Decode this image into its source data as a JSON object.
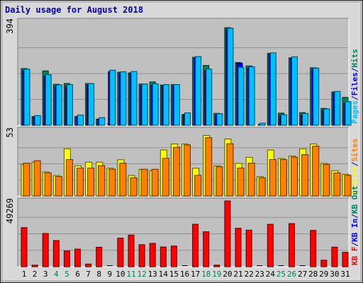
{
  "title": "Daily usage for August 2018",
  "chart_data": [
    {
      "type": "bar",
      "categories": [
        "1",
        "2",
        "3",
        "4",
        "5",
        "6",
        "7",
        "8",
        "9",
        "10",
        "11",
        "12",
        "13",
        "14",
        "15",
        "16",
        "17",
        "18",
        "19",
        "20",
        "21",
        "22",
        "23",
        "24",
        "25",
        "26",
        "27",
        "28",
        "29",
        "30",
        "31"
      ],
      "weekend_days": [
        "4",
        "5",
        "11",
        "12",
        "18",
        "19",
        "25",
        "26"
      ],
      "ymax_label": "394",
      "ylim": [
        0,
        394
      ],
      "legend": [
        {
          "text": "Pages",
          "color": "#00c0ff"
        },
        {
          "text": "/",
          "color": "#0000a0"
        },
        {
          "text": "Files",
          "color": "#0000ff"
        },
        {
          "text": "/",
          "color": "#0000a0"
        },
        {
          "text": "Hits",
          "color": "#00805c"
        }
      ],
      "series": [
        {
          "name": "Hits",
          "color": "#00805c",
          "values": [
            227,
            44,
            218,
            167,
            170,
            44,
            170,
            34,
            0,
            213,
            210,
            168,
            176,
            164,
            166,
            51,
            270,
            239,
            56,
            383,
            250,
            237,
            10,
            285,
            57,
            268,
            59,
            230,
            75,
            138,
            117
          ]
        },
        {
          "name": "Files",
          "color": "#0000ff",
          "values": [
            214,
            37,
            193,
            154,
            155,
            39,
            159,
            29,
            210,
            204,
            205,
            157,
            158,
            155,
            155,
            47,
            262,
            214,
            44,
            370,
            242,
            223,
            8,
            276,
            40,
            261,
            45,
            218,
            62,
            129,
            90
          ]
        },
        {
          "name": "Pages",
          "color": "#00c0ff",
          "values": [
            214,
            37,
            193,
            154,
            155,
            39,
            159,
            29,
            210,
            204,
            205,
            157,
            158,
            155,
            155,
            47,
            262,
            214,
            44,
            370,
            221,
            223,
            8,
            276,
            40,
            261,
            45,
            218,
            62,
            129,
            90
          ]
        }
      ]
    },
    {
      "type": "bar",
      "categories": [
        "1",
        "2",
        "3",
        "4",
        "5",
        "6",
        "7",
        "8",
        "9",
        "10",
        "11",
        "12",
        "13",
        "14",
        "15",
        "16",
        "17",
        "18",
        "19",
        "20",
        "21",
        "22",
        "23",
        "24",
        "25",
        "26",
        "27",
        "28",
        "29",
        "30",
        "31"
      ],
      "ymax_label": "53",
      "ylim": [
        0,
        53
      ],
      "legend": [
        {
          "text": "Visits",
          "color": "#ffff00"
        },
        {
          "text": "/",
          "color": "#0000a0"
        },
        {
          "text": "Sites",
          "color": "#ff8000"
        }
      ],
      "series": [
        {
          "name": "Visits",
          "color": "#ffff00",
          "values": [
            27,
            29,
            21,
            18,
            40,
            26,
            29,
            29,
            24,
            31,
            18,
            23,
            22,
            39,
            44,
            44,
            24,
            51,
            26,
            48,
            28,
            33,
            17,
            39,
            32,
            34,
            40,
            44,
            28,
            22,
            19
          ]
        },
        {
          "name": "Sites",
          "color": "#ff8000",
          "values": [
            27,
            29,
            19,
            16,
            30,
            23,
            23,
            25,
            22,
            27,
            15,
            22,
            22,
            31,
            40,
            42,
            17,
            48,
            24,
            43,
            23,
            27,
            15,
            30,
            30,
            32,
            34,
            41,
            26,
            19,
            17
          ]
        }
      ]
    },
    {
      "type": "bar",
      "categories": [
        "1",
        "2",
        "3",
        "4",
        "5",
        "6",
        "7",
        "8",
        "9",
        "10",
        "11",
        "12",
        "13",
        "14",
        "15",
        "16",
        "17",
        "18",
        "19",
        "20",
        "21",
        "22",
        "23",
        "24",
        "25",
        "26",
        "27",
        "28",
        "29",
        "30",
        "31"
      ],
      "ymax_label": "49269",
      "ylim": [
        0,
        49269
      ],
      "legend": [
        {
          "text": "KB F",
          "color": "#ff0000"
        },
        {
          "text": "/",
          "color": "#0000a0"
        },
        {
          "text": "KB In",
          "color": "#0000ff"
        },
        {
          "text": "/",
          "color": "#0000a0"
        },
        {
          "text": "KB Out",
          "color": "#00805c"
        }
      ],
      "series": [
        {
          "name": "KB F",
          "color": "#ff0000",
          "values": [
            29300,
            1200,
            24900,
            19600,
            11800,
            13200,
            2000,
            14600,
            0,
            21400,
            23700,
            16500,
            17500,
            14800,
            15500,
            0,
            31800,
            26200,
            1200,
            49269,
            28800,
            27400,
            0,
            31800,
            0,
            32300,
            0,
            27200,
            4900,
            14700,
            10800
          ]
        }
      ]
    }
  ],
  "x_tick_labels": [
    "1",
    "2",
    "3",
    "4",
    "5",
    "6",
    "7",
    "8",
    "9",
    "10",
    "11",
    "12",
    "13",
    "14",
    "15",
    "16",
    "17",
    "18",
    "19",
    "20",
    "21",
    "22",
    "23",
    "24",
    "25",
    "26",
    "27",
    "28",
    "29",
    "30",
    "31"
  ]
}
